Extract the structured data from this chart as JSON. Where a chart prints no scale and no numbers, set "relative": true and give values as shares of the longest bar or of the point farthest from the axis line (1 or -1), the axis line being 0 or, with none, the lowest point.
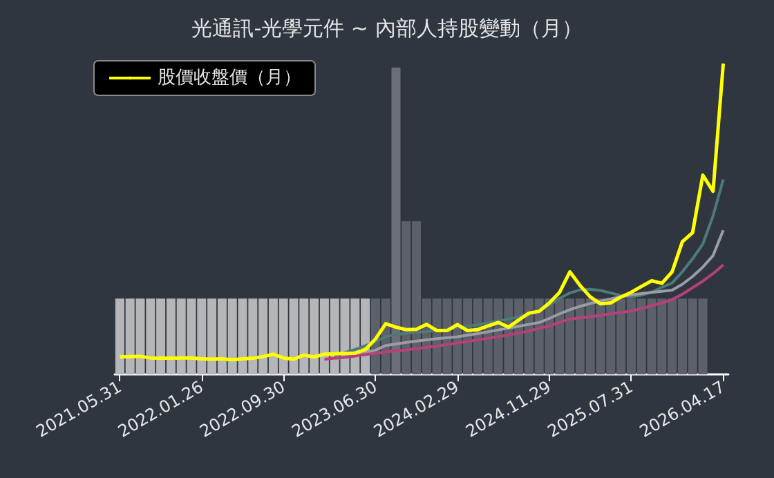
{
  "chart_data": {
    "type": "bar",
    "title": "光通訊-光學元件 ~ 內部人持股變動（月）",
    "relative": true,
    "legend": "top left",
    "marker": "none",
    "categories": [
      "2021.05.31",
      null,
      null,
      null,
      null,
      null,
      null,
      null,
      "2022.01.26",
      null,
      null,
      null,
      null,
      null,
      null,
      null,
      "2022.09.30",
      null,
      null,
      null,
      null,
      null,
      null,
      null,
      null,
      "2023.06.30",
      null,
      null,
      null,
      null,
      null,
      null,
      null,
      "2024.02.29",
      null,
      null,
      null,
      null,
      null,
      null,
      null,
      null,
      "2024.11.29",
      null,
      null,
      null,
      null,
      null,
      null,
      null,
      "2025.07.31",
      null,
      null,
      null,
      null,
      null,
      null,
      null,
      null,
      "2026.04.17"
    ],
    "series": [
      {
        "colors": [
          "#b4b6ba",
          "#b4b6ba",
          "#b4b6ba",
          "#b4b6ba",
          "#b4b6ba",
          "#b4b6ba",
          "#b4b6ba",
          "#b4b6ba",
          "#b4b6ba",
          "#b4b6ba",
          "#b4b6ba",
          "#b4b6ba",
          "#b4b6ba",
          "#b4b6ba",
          "#b4b6ba",
          "#b4b6ba",
          "#b4b6ba",
          "#b4b6ba",
          "#b4b6ba",
          "#b4b6ba",
          "#b4b6ba",
          "#b4b6ba",
          "#b4b6ba",
          "#b4b6ba",
          "#b4b6ba",
          "#5c6068",
          "#5c6068",
          "#6a6e76",
          "#5c6068",
          "#5c6068",
          "#5c6068",
          "#5c6068",
          "#5c6068",
          "#5c6068",
          "#5c6068",
          "#5c6068",
          "#5c6068",
          "#5c6068",
          "#5c6068",
          "#5c6068",
          "#5c6068",
          "#5c6068",
          "#5c6068",
          "#5c6068",
          "#5c6068",
          "#5c6068",
          "#5c6068",
          "#5c6068",
          "#5c6068",
          "#5c6068",
          "#5c6068",
          "#5c6068",
          "#5c6068",
          "#5c6068",
          "#5c6068",
          "#5c6068",
          "#5c6068",
          "#5c6068",
          null,
          null
        ],
        "values": [
          0.244,
          0.244,
          0.244,
          0.244,
          0.244,
          0.244,
          0.244,
          0.244,
          0.244,
          0.244,
          0.244,
          0.244,
          0.244,
          0.244,
          0.244,
          0.244,
          0.244,
          0.244,
          0.244,
          0.244,
          0.244,
          0.244,
          0.244,
          0.244,
          0.244,
          0.244,
          0.244,
          0.987,
          0.493,
          0.493,
          0.244,
          0.244,
          0.244,
          0.244,
          0.244,
          0.244,
          0.244,
          0.244,
          0.244,
          0.244,
          0.244,
          0.244,
          0.244,
          0.244,
          0.244,
          0.244,
          0.244,
          0.244,
          0.244,
          0.244,
          0.244,
          0.244,
          0.244,
          0.244,
          0.244,
          0.244,
          0.244,
          0.244,
          null,
          null
        ]
      },
      {
        "type": "line",
        "name": "股價收盤價（月）",
        "color": "#ffff00",
        "values": [
          0.056,
          0.057,
          0.058,
          0.053,
          0.052,
          0.052,
          0.053,
          0.053,
          0.05,
          0.049,
          0.05,
          0.047,
          0.05,
          0.052,
          0.057,
          0.065,
          0.053,
          0.049,
          0.062,
          0.056,
          0.065,
          0.066,
          0.068,
          0.068,
          0.08,
          0.114,
          0.163,
          0.152,
          0.144,
          0.145,
          0.161,
          0.141,
          0.141,
          0.16,
          0.141,
          0.144,
          0.156,
          0.167,
          0.152,
          0.175,
          0.197,
          0.203,
          0.23,
          0.264,
          0.33,
          0.286,
          0.249,
          0.227,
          0.23,
          0.249,
          0.264,
          0.283,
          0.301,
          0.293,
          0.33,
          0.427,
          0.456,
          0.641,
          0.589,
          1
        ]
      },
      {
        "type": "line",
        "color": "#4f7a7a",
        "values": [
          null,
          null,
          null,
          null,
          null,
          null,
          null,
          null,
          null,
          null,
          null,
          null,
          null,
          null,
          null,
          null,
          null,
          null,
          null,
          null,
          null,
          0.06,
          0.07,
          0.08,
          0.092,
          0.105,
          0.122,
          0.128,
          0.132,
          0.135,
          0.138,
          0.141,
          0.145,
          0.15,
          0.155,
          0.16,
          0.166,
          0.172,
          0.178,
          0.185,
          0.195,
          0.204,
          0.222,
          0.245,
          0.262,
          0.272,
          0.274,
          0.27,
          0.262,
          0.254,
          0.249,
          0.255,
          0.265,
          0.28,
          0.294,
          0.33,
          0.372,
          0.419,
          0.51,
          0.627
        ]
      },
      {
        "type": "line",
        "color": "#9a9ea4",
        "values": [
          null,
          null,
          null,
          null,
          null,
          null,
          null,
          null,
          null,
          null,
          null,
          null,
          null,
          null,
          null,
          null,
          null,
          null,
          null,
          null,
          null,
          0.05,
          0.055,
          0.062,
          0.07,
          0.078,
          0.093,
          0.098,
          0.103,
          0.107,
          0.111,
          0.115,
          0.118,
          0.121,
          0.126,
          0.131,
          0.137,
          0.143,
          0.149,
          0.155,
          0.161,
          0.167,
          0.18,
          0.195,
          0.208,
          0.219,
          0.228,
          0.236,
          0.243,
          0.25,
          0.256,
          0.26,
          0.264,
          0.267,
          0.271,
          0.29,
          0.315,
          0.345,
          0.382,
          0.464
        ]
      },
      {
        "type": "line",
        "color": "#b8407a",
        "values": [
          null,
          null,
          null,
          null,
          null,
          null,
          null,
          null,
          null,
          null,
          null,
          null,
          null,
          null,
          null,
          null,
          null,
          null,
          null,
          null,
          0.049,
          0.052,
          0.055,
          0.059,
          0.064,
          0.068,
          0.072,
          0.076,
          0.079,
          0.083,
          0.087,
          0.091,
          0.096,
          0.101,
          0.106,
          0.111,
          0.116,
          0.121,
          0.127,
          0.133,
          0.14,
          0.148,
          0.156,
          0.168,
          0.178,
          0.182,
          0.185,
          0.19,
          0.195,
          0.199,
          0.204,
          0.212,
          0.221,
          0.23,
          0.241,
          0.258,
          0.279,
          0.3,
          0.324,
          0.352
        ]
      }
    ]
  }
}
